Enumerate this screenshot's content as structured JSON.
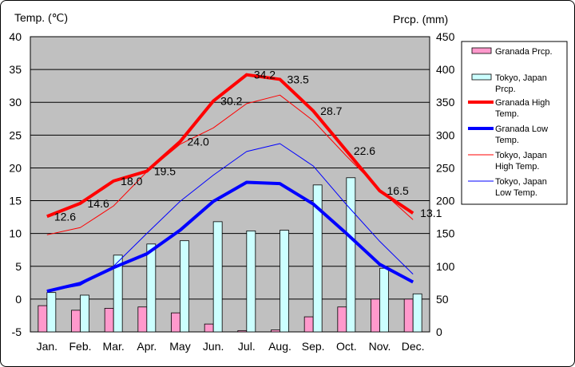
{
  "chart_data": {
    "type": "bar+line",
    "left_axis_title": "Temp. (℃)",
    "right_axis_title": "Prcp. (mm)",
    "categories": [
      "Jan.",
      "Feb.",
      "Mar.",
      "Apr.",
      "May",
      "Jun.",
      "Jul.",
      "Aug.",
      "Sep.",
      "Oct.",
      "Nov.",
      "Dec."
    ],
    "temp_axis": {
      "min": -5,
      "max": 40,
      "step": 5
    },
    "prcp_axis": {
      "min": 0,
      "max": 450,
      "step": 50
    },
    "bars": [
      {
        "name": "Granada Prcp.",
        "color": "#ff99cc",
        "values": [
          40,
          33,
          36,
          38,
          29,
          12,
          2,
          3,
          23,
          38,
          50,
          50
        ]
      },
      {
        "name": "Tokyo, Japan Prcp.",
        "color": "#ccffff",
        "values": [
          60,
          56,
          117,
          134,
          139,
          168,
          154,
          155,
          224,
          235,
          97,
          58
        ]
      }
    ],
    "lines": [
      {
        "name": "Granada High Temp.",
        "color": "#ff0000",
        "width": 4,
        "values": [
          12.6,
          14.6,
          18.0,
          19.5,
          24.0,
          30.2,
          34.2,
          33.5,
          28.7,
          22.6,
          16.5,
          13.1
        ],
        "labels": [
          "12.6",
          "14.6",
          "18.0",
          "19.5",
          "24.0",
          "30.2",
          "34.2",
          "33.5",
          "28.7",
          "22.6",
          "16.5",
          "13.1"
        ]
      },
      {
        "name": "Granada Low Temp.",
        "color": "#0000ff",
        "width": 4,
        "values": [
          1.2,
          2.4,
          4.8,
          6.9,
          10.5,
          14.9,
          17.8,
          17.6,
          14.5,
          10.0,
          5.3,
          2.6
        ]
      },
      {
        "name": "Tokyo, Japan High Temp.",
        "color": "#ff0000",
        "width": 1,
        "values": [
          9.8,
          10.9,
          14.2,
          19.4,
          23.6,
          26.1,
          29.8,
          31.1,
          27.2,
          21.8,
          16.7,
          12.1
        ]
      },
      {
        "name": "Tokyo, Japan Low Temp.",
        "color": "#0000ff",
        "width": 1,
        "values": [
          1.2,
          2.1,
          5.0,
          10.0,
          14.9,
          18.9,
          22.5,
          23.7,
          20.3,
          14.4,
          8.8,
          3.8
        ]
      }
    ],
    "legend": {
      "placement": "right",
      "items": [
        {
          "lines": [
            "Granada Prcp."
          ],
          "kind": "bar",
          "color": "#ff99cc"
        },
        {
          "lines": [
            "Tokyo, Japan",
            "Prcp."
          ],
          "kind": "bar",
          "color": "#ccffff"
        },
        {
          "lines": [
            "Granada High",
            "Temp."
          ],
          "kind": "thick-line",
          "color": "#ff0000"
        },
        {
          "lines": [
            "Granada Low",
            "Temp."
          ],
          "kind": "thick-line",
          "color": "#0000ff"
        },
        {
          "lines": [
            "Tokyo, Japan",
            "High Temp."
          ],
          "kind": "thin-line",
          "color": "#ff0000"
        },
        {
          "lines": [
            "Tokyo, Japan",
            "Low Temp."
          ],
          "kind": "thin-line",
          "color": "#0000ff"
        }
      ]
    },
    "plot_background": "#c0c0c0",
    "grid": true
  }
}
